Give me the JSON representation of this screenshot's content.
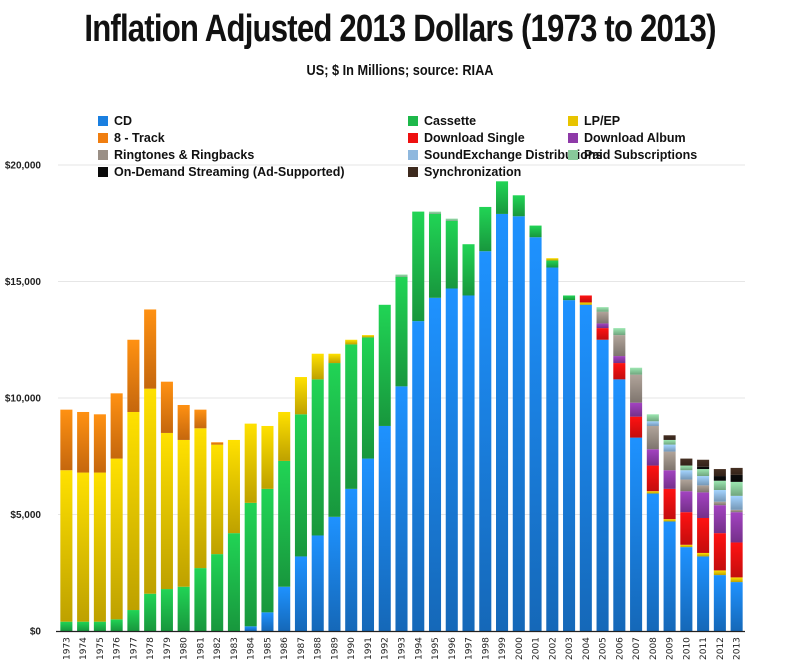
{
  "chart_data": {
    "type": "bar",
    "stacked": true,
    "title": "Inflation Adjusted 2013 Dollars (1973 to 2013)",
    "subtitle": "US; $ In Millions; source: RIAA",
    "xlabel": "",
    "ylabel": "",
    "ylim": [
      0,
      20000
    ],
    "yticks": [
      0,
      5000,
      10000,
      15000,
      20000
    ],
    "ytick_labels": [
      "$0",
      "$5,000",
      "$10,000",
      "$15,000",
      "$20,000"
    ],
    "grid": true,
    "legend_position": "top",
    "categories": [
      "1973",
      "1974",
      "1975",
      "1976",
      "1977",
      "1978",
      "1979",
      "1980",
      "1981",
      "1982",
      "1983",
      "1984",
      "1985",
      "1986",
      "1987",
      "1988",
      "1989",
      "1990",
      "1991",
      "1992",
      "1993",
      "1994",
      "1995",
      "1996",
      "1997",
      "1998",
      "1999",
      "2000",
      "2001",
      "2002",
      "2003",
      "2004",
      "2005",
      "2006",
      "2007",
      "2008",
      "2009",
      "2010",
      "2011",
      "2012",
      "2013"
    ],
    "series": [
      {
        "name": "CD",
        "color": "#1a7fe0",
        "values": [
          0,
          0,
          0,
          0,
          0,
          0,
          0,
          0,
          0,
          0,
          0,
          200,
          800,
          1900,
          3200,
          4100,
          4900,
          6100,
          7400,
          8800,
          10500,
          13300,
          14300,
          14700,
          14400,
          16300,
          17900,
          17800,
          16900,
          15600,
          14200,
          14000,
          12500,
          10800,
          8300,
          5900,
          4700,
          3600,
          3200,
          2400,
          2100
        ]
      },
      {
        "name": "Cassette",
        "color": "#1db84a",
        "values": [
          400,
          400,
          400,
          500,
          900,
          1600,
          1800,
          1900,
          2700,
          3300,
          4200,
          5300,
          5300,
          5400,
          6100,
          6700,
          6600,
          6200,
          5200,
          5200,
          4700,
          4700,
          3600,
          2900,
          2200,
          1900,
          1400,
          900,
          500,
          300,
          200,
          0,
          0,
          0,
          0,
          0,
          0,
          0,
          0,
          0,
          0
        ]
      },
      {
        "name": "LP/EP",
        "color": "#e8c400",
        "values": [
          6500,
          6400,
          6400,
          6900,
          8500,
          8800,
          6700,
          6300,
          6000,
          4700,
          4000,
          3400,
          2700,
          2100,
          1600,
          1100,
          400,
          200,
          100,
          0,
          0,
          0,
          0,
          0,
          0,
          0,
          0,
          0,
          0,
          100,
          0,
          100,
          0,
          0,
          0,
          100,
          100,
          100,
          150,
          200,
          200
        ]
      },
      {
        "name": "8 - Track",
        "color": "#f07e10",
        "values": [
          2600,
          2600,
          2500,
          2800,
          3100,
          3400,
          2200,
          1500,
          800,
          100,
          0,
          0,
          0,
          0,
          0,
          0,
          0,
          0,
          0,
          0,
          0,
          0,
          0,
          0,
          0,
          0,
          0,
          0,
          0,
          0,
          0,
          0,
          0,
          0,
          0,
          0,
          0,
          0,
          0,
          0,
          0
        ]
      },
      {
        "name": "Download Single",
        "color": "#ee1010",
        "values": [
          0,
          0,
          0,
          0,
          0,
          0,
          0,
          0,
          0,
          0,
          0,
          0,
          0,
          0,
          0,
          0,
          0,
          0,
          0,
          0,
          0,
          0,
          0,
          0,
          0,
          0,
          0,
          0,
          0,
          0,
          0,
          300,
          500,
          700,
          900,
          1100,
          1300,
          1400,
          1500,
          1600,
          1500
        ]
      },
      {
        "name": "Download Album",
        "color": "#8e3aa8",
        "values": [
          0,
          0,
          0,
          0,
          0,
          0,
          0,
          0,
          0,
          0,
          0,
          0,
          0,
          0,
          0,
          0,
          0,
          0,
          0,
          0,
          0,
          0,
          0,
          0,
          0,
          0,
          0,
          0,
          0,
          0,
          0,
          0,
          200,
          300,
          600,
          700,
          800,
          900,
          1100,
          1200,
          1300
        ]
      },
      {
        "name": "Ringtones & Ringbacks",
        "color": "#9a8f86",
        "values": [
          0,
          0,
          0,
          0,
          0,
          0,
          0,
          0,
          0,
          0,
          0,
          0,
          0,
          0,
          0,
          0,
          0,
          0,
          0,
          0,
          0,
          0,
          0,
          0,
          0,
          0,
          0,
          0,
          0,
          0,
          0,
          0,
          500,
          900,
          1200,
          1000,
          800,
          500,
          300,
          150,
          100
        ]
      },
      {
        "name": "SoundExchange Distributions",
        "color": "#8fb8de",
        "values": [
          0,
          0,
          0,
          0,
          0,
          0,
          0,
          0,
          0,
          0,
          0,
          0,
          0,
          0,
          0,
          0,
          0,
          0,
          0,
          0,
          0,
          0,
          0,
          0,
          0,
          0,
          0,
          0,
          0,
          0,
          0,
          0,
          0,
          0,
          0,
          200,
          300,
          400,
          400,
          500,
          600
        ]
      },
      {
        "name": "Paid Subscriptions",
        "color": "#88c99a",
        "values": [
          0,
          0,
          0,
          0,
          0,
          0,
          0,
          0,
          0,
          0,
          0,
          0,
          0,
          0,
          0,
          0,
          0,
          0,
          0,
          0,
          100,
          0,
          100,
          100,
          0,
          0,
          0,
          0,
          0,
          0,
          0,
          0,
          200,
          300,
          300,
          300,
          200,
          200,
          300,
          400,
          600
        ]
      },
      {
        "name": "On-Demand Streaming (Ad-Supported)",
        "color": "#0a0a0a",
        "values": [
          0,
          0,
          0,
          0,
          0,
          0,
          0,
          0,
          0,
          0,
          0,
          0,
          0,
          0,
          0,
          0,
          0,
          0,
          0,
          0,
          0,
          0,
          0,
          0,
          0,
          0,
          0,
          0,
          0,
          0,
          0,
          0,
          0,
          0,
          0,
          0,
          0,
          0,
          100,
          200,
          300
        ]
      },
      {
        "name": "Synchronization",
        "color": "#3d2a1e",
        "values": [
          0,
          0,
          0,
          0,
          0,
          0,
          0,
          0,
          0,
          0,
          0,
          0,
          0,
          0,
          0,
          0,
          0,
          0,
          0,
          0,
          0,
          0,
          0,
          0,
          0,
          0,
          0,
          0,
          0,
          0,
          0,
          0,
          0,
          0,
          0,
          0,
          200,
          300,
          300,
          300,
          300
        ]
      }
    ],
    "legend_layout": [
      [
        "CD",
        "Cassette",
        "LP/EP"
      ],
      [
        "8 - Track",
        "Download Single",
        "Download Album"
      ],
      [
        "Ringtones & Ringbacks",
        "SoundExchange Distributions",
        "Paid Subscriptions"
      ],
      [
        "On-Demand Streaming (Ad-Supported)",
        "Synchronization"
      ]
    ]
  }
}
